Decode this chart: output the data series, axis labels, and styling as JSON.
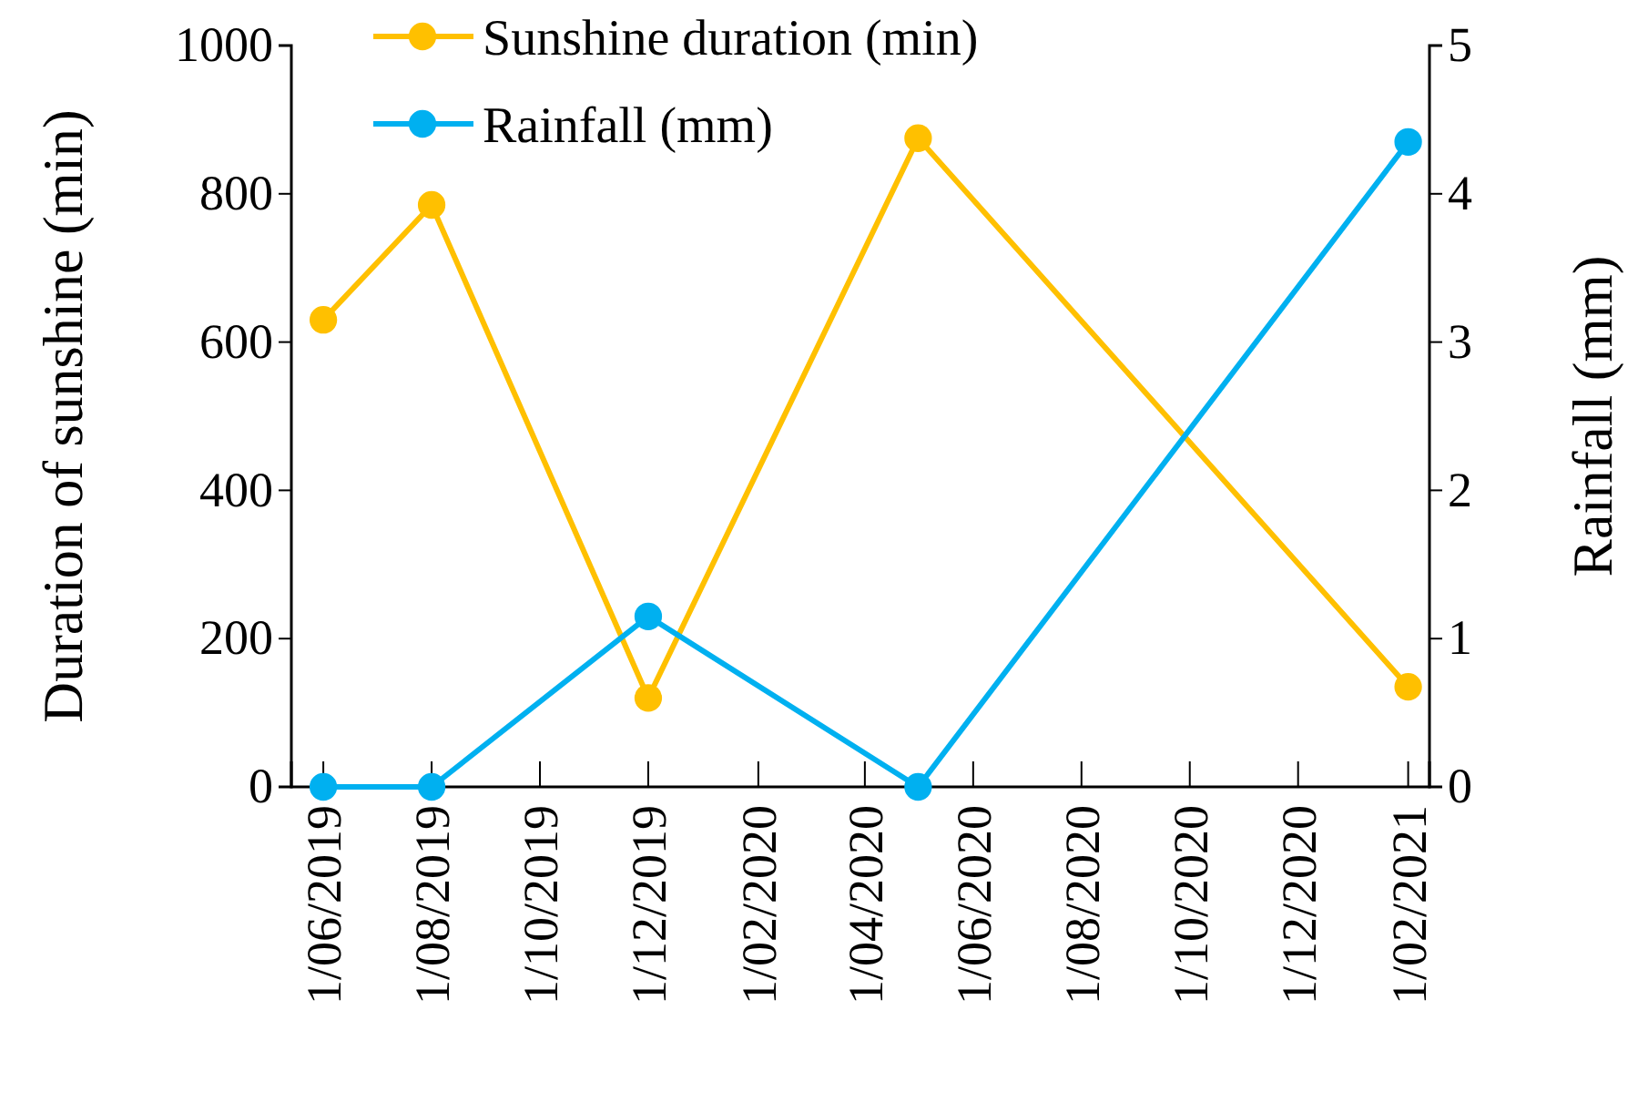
{
  "chart_data": {
    "type": "line",
    "xlabel": null,
    "ylabel": "Duration of sunshine (min)",
    "y2label": "Rainfall (mm)",
    "x": [
      "2019-06-01",
      "2019-08-01",
      "2019-12-01",
      "2020-05-01",
      "2021-02-01"
    ],
    "series": [
      {
        "name": "Sunshine duration (min)",
        "color": "#ffc000",
        "values": [
          630,
          785,
          120,
          875,
          135
        ]
      },
      {
        "name": "Rainfall (mm)",
        "color": "#00b0f0",
        "axis": "y2",
        "values": [
          0,
          0,
          1.15,
          0,
          4.35
        ]
      }
    ],
    "xlim": [
      "2019-05-14",
      "2021-02-13"
    ],
    "xticks": [
      {
        "value": "2019-06-01",
        "label": "1/06/2019"
      },
      {
        "value": "2019-08-01",
        "label": "1/08/2019"
      },
      {
        "value": "2019-10-01",
        "label": "1/10/2019"
      },
      {
        "value": "2019-12-01",
        "label": "1/12/2019"
      },
      {
        "value": "2020-02-01",
        "label": "1/02/2020"
      },
      {
        "value": "2020-04-01",
        "label": "1/04/2020"
      },
      {
        "value": "2020-06-01",
        "label": "1/06/2020"
      },
      {
        "value": "2020-08-01",
        "label": "1/08/2020"
      },
      {
        "value": "2020-10-01",
        "label": "1/10/2020"
      },
      {
        "value": "2020-12-01",
        "label": "1/12/2020"
      },
      {
        "value": "2021-02-01",
        "label": "1/02/2021"
      }
    ],
    "ylim": [
      0,
      1000
    ],
    "yticks": [
      0,
      200,
      400,
      600,
      800,
      1000
    ],
    "y2lim": [
      0,
      5
    ],
    "y2ticks": [
      0,
      1,
      2,
      3,
      4,
      5
    ],
    "marker": "circle",
    "line_style": "solid",
    "grid": false,
    "legend": "top"
  }
}
